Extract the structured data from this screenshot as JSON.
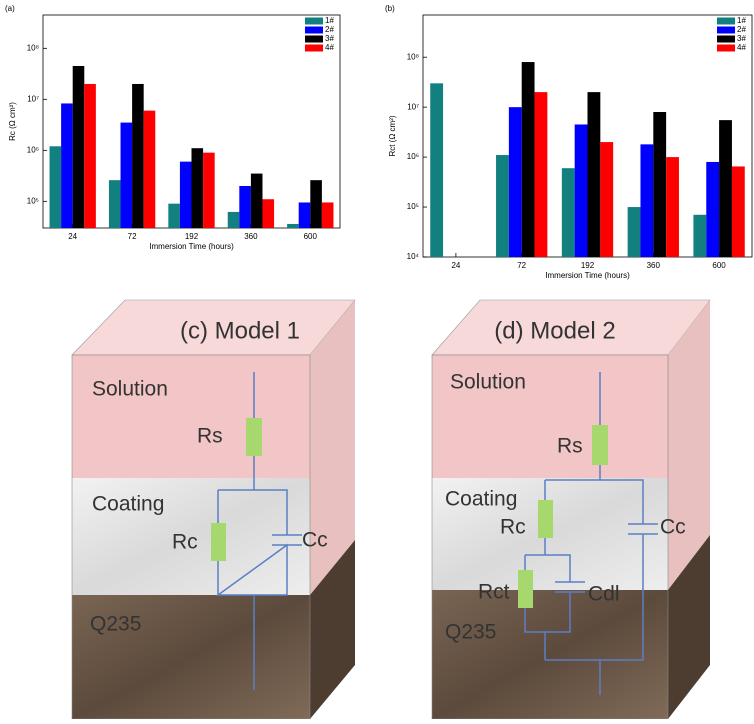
{
  "chart_data": [
    {
      "type": "bar",
      "title": "(a)",
      "x_label": "Immersion Time (hours)",
      "y_label": "Rc (Ω cm²)",
      "log_y": true,
      "categories": [
        "24",
        "72",
        "192",
        "360",
        "600"
      ],
      "ylim": [
        30000,
        450000000
      ],
      "yticks": [
        {
          "value": 100000,
          "label": "10⁵"
        },
        {
          "value": 1000000,
          "label": "10⁶"
        },
        {
          "value": 10000000,
          "label": "10⁷"
        },
        {
          "value": 100000000,
          "label": "10⁸"
        }
      ],
      "legend": "upper right",
      "series": [
        {
          "name": "1#",
          "color": "#138080",
          "values": [
            1200000,
            260000,
            90000,
            62000,
            36000
          ]
        },
        {
          "name": "2#",
          "color": "#0000ff",
          "values": [
            8300000,
            3500000,
            600000,
            200000,
            95000
          ]
        },
        {
          "name": "3#",
          "color": "#000000",
          "values": [
            45000000,
            20000000,
            1100000,
            350000,
            260000
          ]
        },
        {
          "name": "4#",
          "color": "#ff0000",
          "values": [
            20000000,
            6000000,
            900000,
            110000,
            95000
          ]
        }
      ]
    },
    {
      "type": "bar",
      "title": "(b)",
      "x_label": "Immersion Time (hours)",
      "y_label": "Rct (Ω cm²)",
      "log_y": true,
      "categories": [
        "24",
        "72",
        "192",
        "360",
        "600"
      ],
      "ylim": [
        10000,
        700000000
      ],
      "yticks": [
        {
          "value": 10000,
          "label": "10⁴"
        },
        {
          "value": 100000,
          "label": "10⁵"
        },
        {
          "value": 1000000,
          "label": "10⁶"
        },
        {
          "value": 10000000,
          "label": "10⁷"
        },
        {
          "value": 100000000,
          "label": "10⁸"
        }
      ],
      "legend": "upper right",
      "series": [
        {
          "name": "1#",
          "color": "#138080",
          "values": [
            30000000,
            1100000,
            600000,
            100000,
            70000
          ]
        },
        {
          "name": "2#",
          "color": "#0000ff",
          "values": [
            null,
            10000000,
            4500000,
            1800000,
            800000
          ]
        },
        {
          "name": "3#",
          "color": "#000000",
          "values": [
            null,
            80000000,
            20000000,
            8000000,
            5500000
          ]
        },
        {
          "name": "4#",
          "color": "#ff0000",
          "values": [
            null,
            20000000,
            2000000,
            1000000,
            650000
          ]
        }
      ]
    }
  ],
  "diagrams": [
    {
      "title": "(c) Model 1",
      "layers": [
        "Solution",
        "Coating",
        "Q235"
      ],
      "elements": [
        "Rs",
        "Rc",
        "Cc"
      ]
    },
    {
      "title": "(d) Model 2",
      "layers": [
        "Solution",
        "Coating",
        "Q235"
      ],
      "elements": [
        "Rs",
        "Rc",
        "Cc",
        "Rct",
        "Cdl"
      ]
    }
  ]
}
